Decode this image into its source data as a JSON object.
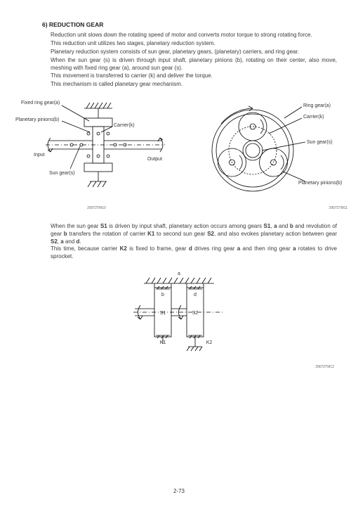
{
  "heading": "6)  REDUCTION GEAR",
  "para1": [
    "Reduction unit slows down the rotating speed of motor and converts motor torque to strong rotating force.",
    "This reduction unit utilizes two stages, planetary reduction system.",
    "Planetary reduction system consists of sun gear, planetary gears, (planetary) carriers, and ring gear.",
    "When the sun gear (s) is driven through input shaft, planetary pinions (b), rotating on their center, also move, meshing with fixed ring gear (a), around sun gear (s).",
    "This movement is transferred to carrier (k) and deliver the torque.",
    "This mechanism is called planetary gear mechanism."
  ],
  "fig1": {
    "id": "29072TM10",
    "labels": {
      "fixedRingGear": "Fixed ring gear(a)",
      "planetaryPinions": "Planetary pinions(b)",
      "carrier": "Carrier(k)",
      "sunGear": "Sun gear(s)",
      "input": "Input",
      "output": "Output"
    },
    "stroke": "#000000",
    "fill": "#ffffff",
    "fontSize": 7
  },
  "fig2": {
    "id": "29072TM11",
    "labels": {
      "ringGear": "Ring gear(a)",
      "carrier": "Carrier(k)",
      "sunGear": "Sun gear(s)",
      "planetaryPinions": "Planetary pinions(b)"
    },
    "stroke": "#000000",
    "fill": "#ffffff",
    "fontSize": 7
  },
  "para2_html": "When the sun gear <b>S1</b> is driven by input shaft, planetary action occurs among gears <b>S1</b>, <b>a</b> and <b>b</b> and revolution of gear <b>b</b> transfers the rotation of carrier <b>K1</b> to second sun gear <b>S2</b>, and also evokes planetary action between gear <b>S2</b>, <b>a</b> and <b>d</b>.<br>This time, because carrier <b>K2</b> is fixed to frame, gear <b>d</b> drives ring gear <b>a</b> and then ring gear <b>a</b> rotates to drive sprocket.",
  "fig3": {
    "id": "29072TM12",
    "labels": {
      "a": "a",
      "b": "b",
      "d": "d",
      "S1": "S1",
      "S2": "S2",
      "K1": "K1",
      "K2": "K2"
    },
    "stroke": "#000000",
    "fill": "#ffffff",
    "fontSize": 7
  },
  "pageNumber": "2-73"
}
